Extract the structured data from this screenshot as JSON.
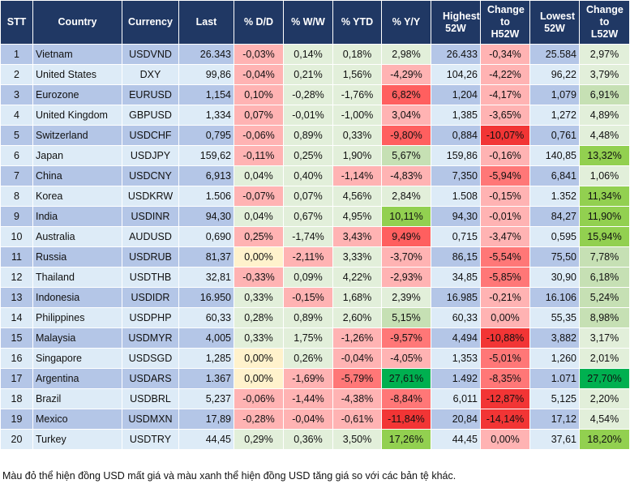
{
  "headers": [
    "STT",
    "Country",
    "Currency",
    "Last",
    "% D/D",
    "% W/W",
    "% YTD",
    "% Y/Y",
    "Highest 52W",
    "Change to H52W",
    "Lowest 52W",
    "Change to L52W"
  ],
  "colors": {
    "header_bg": "#203864",
    "row_odd": "#b4c6e7",
    "row_even": "#ddebf7",
    "g1": "#e2efda",
    "g2": "#c6e0b4",
    "g3": "#92d050",
    "g4": "#00b050",
    "y": "#fff2cc",
    "r1": "#ffb3b3",
    "r2": "#ff7777",
    "r3": "#ff5f5f",
    "r4": "#f23535"
  },
  "rows": [
    {
      "stt": "1",
      "country": "Vietnam",
      "currency": "USDVND",
      "last": "26.343",
      "dd": "-0,03%",
      "ww": "0,14%",
      "ytd": "0,18%",
      "yy": "2,98%",
      "h52": "26.433",
      "ch52": "-0,34%",
      "l52": "25.584",
      "cl52": "2,97%",
      "lv": [
        "r1",
        "g1",
        "g1",
        "g1",
        "r1",
        "g1"
      ]
    },
    {
      "stt": "2",
      "country": "United States",
      "currency": "DXY",
      "last": "99,86",
      "dd": "-0,04%",
      "ww": "0,21%",
      "ytd": "1,56%",
      "yy": "-4,29%",
      "h52": "104,26",
      "ch52": "-4,22%",
      "l52": "96,22",
      "cl52": "3,79%",
      "lv": [
        "r1",
        "g1",
        "g1",
        "r1",
        "r1",
        "g1"
      ]
    },
    {
      "stt": "3",
      "country": "Eurozone",
      "currency": "EURUSD",
      "last": "1,154",
      "dd": "0,10%",
      "ww": "-0,28%",
      "ytd": "-1,76%",
      "yy": "6,82%",
      "h52": "1,204",
      "ch52": "-4,17%",
      "l52": "1,079",
      "cl52": "6,91%",
      "lv": [
        "r1",
        "g1",
        "g1",
        "r3",
        "r1",
        "g2"
      ]
    },
    {
      "stt": "4",
      "country": "United Kingdom",
      "currency": "GBPUSD",
      "last": "1,334",
      "dd": "0,07%",
      "ww": "-0,01%",
      "ytd": "-1,00%",
      "yy": "3,04%",
      "h52": "1,385",
      "ch52": "-3,65%",
      "l52": "1,272",
      "cl52": "4,89%",
      "lv": [
        "r1",
        "g1",
        "g1",
        "r1",
        "r1",
        "g1"
      ]
    },
    {
      "stt": "5",
      "country": "Switzerland",
      "currency": "USDCHF",
      "last": "0,795",
      "dd": "-0,06%",
      "ww": "0,89%",
      "ytd": "0,33%",
      "yy": "-9,80%",
      "h52": "0,884",
      "ch52": "-10,07%",
      "l52": "0,761",
      "cl52": "4,48%",
      "lv": [
        "r1",
        "g1",
        "g1",
        "r3",
        "r4",
        "g1"
      ]
    },
    {
      "stt": "6",
      "country": "Japan",
      "currency": "USDJPY",
      "last": "159,62",
      "dd": "-0,11%",
      "ww": "0,25%",
      "ytd": "1,90%",
      "yy": "5,67%",
      "h52": "159,86",
      "ch52": "-0,16%",
      "l52": "140,85",
      "cl52": "13,32%",
      "lv": [
        "r1",
        "g1",
        "g1",
        "g2",
        "r1",
        "g3"
      ]
    },
    {
      "stt": "7",
      "country": "China",
      "currency": "USDCNY",
      "last": "6,913",
      "dd": "0,04%",
      "ww": "0,40%",
      "ytd": "-1,14%",
      "yy": "-4,83%",
      "h52": "7,350",
      "ch52": "-5,94%",
      "l52": "6,841",
      "cl52": "1,06%",
      "lv": [
        "g1",
        "g1",
        "r1",
        "r1",
        "r2",
        "g1"
      ]
    },
    {
      "stt": "8",
      "country": "Korea",
      "currency": "USDKRW",
      "last": "1.506",
      "dd": "-0,07%",
      "ww": "0,07%",
      "ytd": "4,56%",
      "yy": "2,84%",
      "h52": "1.508",
      "ch52": "-0,15%",
      "l52": "1.352",
      "cl52": "11,34%",
      "lv": [
        "r1",
        "g1",
        "g1",
        "g1",
        "r1",
        "g3"
      ]
    },
    {
      "stt": "9",
      "country": "India",
      "currency": "USDINR",
      "last": "94,30",
      "dd": "0,04%",
      "ww": "0,67%",
      "ytd": "4,95%",
      "yy": "10,11%",
      "h52": "94,30",
      "ch52": "-0,01%",
      "l52": "84,27",
      "cl52": "11,90%",
      "lv": [
        "g1",
        "g1",
        "g1",
        "g3",
        "r1",
        "g3"
      ]
    },
    {
      "stt": "10",
      "country": "Australia",
      "currency": "AUDUSD",
      "last": "0,690",
      "dd": "0,25%",
      "ww": "-1,74%",
      "ytd": "3,43%",
      "yy": "9,49%",
      "h52": "0,715",
      "ch52": "-3,47%",
      "l52": "0,595",
      "cl52": "15,94%",
      "lv": [
        "r1",
        "g1",
        "r1",
        "r3",
        "r1",
        "g3"
      ]
    },
    {
      "stt": "11",
      "country": "Russia",
      "currency": "USDRUB",
      "last": "81,37",
      "dd": "0,00%",
      "ww": "-2,11%",
      "ytd": "3,33%",
      "yy": "-3,70%",
      "h52": "86,15",
      "ch52": "-5,54%",
      "l52": "75,50",
      "cl52": "7,78%",
      "lv": [
        "y",
        "r1",
        "g1",
        "r1",
        "r2",
        "g2"
      ]
    },
    {
      "stt": "12",
      "country": "Thailand",
      "currency": "USDTHB",
      "last": "32,81",
      "dd": "-0,33%",
      "ww": "0,09%",
      "ytd": "4,22%",
      "yy": "-2,93%",
      "h52": "34,85",
      "ch52": "-5,85%",
      "l52": "30,90",
      "cl52": "6,18%",
      "lv": [
        "r1",
        "g1",
        "g1",
        "r1",
        "r2",
        "g2"
      ]
    },
    {
      "stt": "13",
      "country": "Indonesia",
      "currency": "USDIDR",
      "last": "16.950",
      "dd": "0,33%",
      "ww": "-0,15%",
      "ytd": "1,68%",
      "yy": "2,39%",
      "h52": "16.985",
      "ch52": "-0,21%",
      "l52": "16.106",
      "cl52": "5,24%",
      "lv": [
        "g1",
        "r1",
        "g1",
        "g1",
        "r1",
        "g2"
      ]
    },
    {
      "stt": "14",
      "country": "Philippines",
      "currency": "USDPHP",
      "last": "60,33",
      "dd": "0,28%",
      "ww": "0,89%",
      "ytd": "2,60%",
      "yy": "5,15%",
      "h52": "60,33",
      "ch52": "0,00%",
      "l52": "55,35",
      "cl52": "8,98%",
      "lv": [
        "g1",
        "g1",
        "g1",
        "g2",
        "r1",
        "g2"
      ]
    },
    {
      "stt": "15",
      "country": "Malaysia",
      "currency": "USDMYR",
      "last": "4,005",
      "dd": "0,33%",
      "ww": "1,75%",
      "ytd": "-1,26%",
      "yy": "-9,57%",
      "h52": "4,494",
      "ch52": "-10,88%",
      "l52": "3,882",
      "cl52": "3,17%",
      "lv": [
        "g1",
        "g1",
        "r1",
        "r2",
        "r4",
        "g1"
      ]
    },
    {
      "stt": "16",
      "country": "Singapore",
      "currency": "USDSGD",
      "last": "1,285",
      "dd": "0,00%",
      "ww": "0,26%",
      "ytd": "-0,04%",
      "yy": "-4,05%",
      "h52": "1,353",
      "ch52": "-5,01%",
      "l52": "1,260",
      "cl52": "2,01%",
      "lv": [
        "y",
        "g1",
        "r1",
        "r1",
        "r2",
        "g1"
      ]
    },
    {
      "stt": "17",
      "country": "Argentina",
      "currency": "USDARS",
      "last": "1.367",
      "dd": "0,00%",
      "ww": "-1,69%",
      "ytd": "-5,79%",
      "yy": "27,61%",
      "h52": "1.492",
      "ch52": "-8,35%",
      "l52": "1.071",
      "cl52": "27,70%",
      "lv": [
        "y",
        "r1",
        "r2",
        "g4",
        "r2",
        "g4"
      ]
    },
    {
      "stt": "18",
      "country": "Brazil",
      "currency": "USDBRL",
      "last": "5,237",
      "dd": "-0,06%",
      "ww": "-1,44%",
      "ytd": "-4,38%",
      "yy": "-8,84%",
      "h52": "6,011",
      "ch52": "-12,87%",
      "l52": "5,125",
      "cl52": "2,20%",
      "lv": [
        "r1",
        "r1",
        "r1",
        "r2",
        "r4",
        "g1"
      ]
    },
    {
      "stt": "19",
      "country": "Mexico",
      "currency": "USDMXN",
      "last": "17,89",
      "dd": "-0,28%",
      "ww": "-0,04%",
      "ytd": "-0,61%",
      "yy": "-11,84%",
      "h52": "20,84",
      "ch52": "-14,14%",
      "l52": "17,12",
      "cl52": "4,54%",
      "lv": [
        "r1",
        "r1",
        "r1",
        "r4",
        "r4",
        "g1"
      ]
    },
    {
      "stt": "20",
      "country": "Turkey",
      "currency": "USDTRY",
      "last": "44,45",
      "dd": "0,29%",
      "ww": "0,36%",
      "ytd": "3,50%",
      "yy": "17,26%",
      "h52": "44,45",
      "ch52": "0,00%",
      "l52": "37,61",
      "cl52": "18,20%",
      "lv": [
        "g1",
        "g1",
        "g1",
        "g3",
        "r1",
        "g3"
      ]
    }
  ],
  "footnote": "Màu đỏ thể hiện đồng USD mất giá và màu xanh thể hiện đồng USD tăng giá so với các bản tệ khác."
}
